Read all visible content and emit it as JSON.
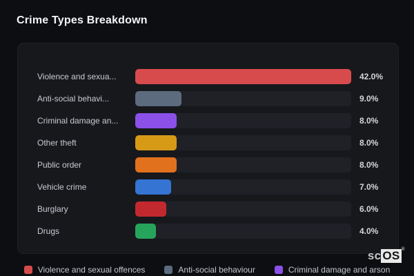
{
  "page_title": "Crime Types Breakdown",
  "watermark": {
    "prefix": "sc",
    "suffix": "OS",
    "reg": "®"
  },
  "ui_colors": {
    "background": "#0d0e11",
    "card": "#17181c",
    "track": "#1f2127",
    "title_text": "#f4f5f7",
    "label_text": "#c7cbd2",
    "value_text": "#d3d6da"
  },
  "chart_data": {
    "type": "bar",
    "orientation": "horizontal",
    "title": "Crime Types Breakdown",
    "categories": [
      "Violence and sexual offences",
      "Anti-social behaviour",
      "Criminal damage and arson",
      "Other theft",
      "Public order",
      "Vehicle crime",
      "Burglary",
      "Drugs"
    ],
    "displayed_labels": [
      "Violence and sexua...",
      "Anti-social behavi...",
      "Criminal damage an...",
      "Other theft",
      "Public order",
      "Vehicle crime",
      "Burglary",
      "Drugs"
    ],
    "values": [
      42.0,
      9.0,
      8.0,
      8.0,
      8.0,
      7.0,
      6.0,
      4.0
    ],
    "value_labels": [
      "42.0%",
      "9.0%",
      "8.0%",
      "8.0%",
      "8.0%",
      "7.0%",
      "6.0%",
      "4.0%"
    ],
    "colors": [
      "#d84b4d",
      "#5d6b7e",
      "#8a50e8",
      "#d69a17",
      "#e2711d",
      "#3574d3",
      "#c2292f",
      "#27a45c"
    ],
    "max_value": 42.0,
    "xlim": [
      0,
      42
    ],
    "grid": false,
    "legend_position": "bottom",
    "legend": [
      {
        "label": "Violence and sexual offences",
        "color": "#d84b4d"
      },
      {
        "label": "Anti-social behaviour",
        "color": "#5d6b7e"
      },
      {
        "label": "Criminal damage and arson",
        "color": "#8a50e8"
      }
    ]
  }
}
